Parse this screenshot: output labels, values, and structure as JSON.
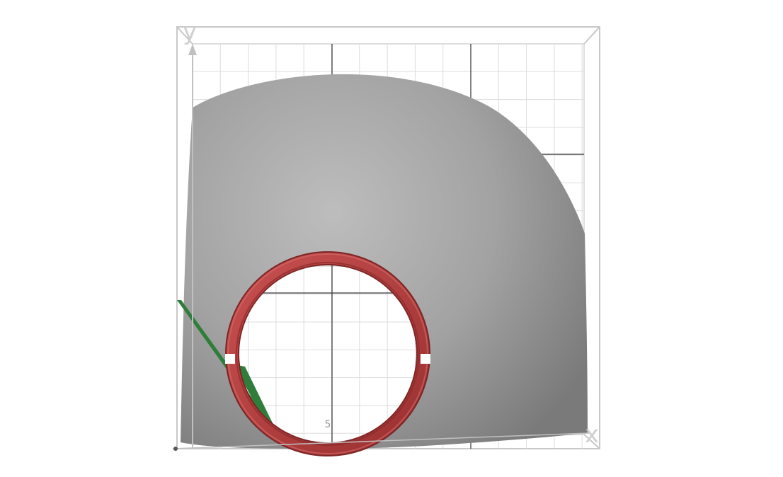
{
  "axes": {
    "x_label": "x",
    "y_label": "y",
    "tick_label": "5"
  },
  "colors": {
    "background": "#ffffff",
    "grid_minor": "#dddddd",
    "grid_major": "#333333",
    "box": "#c8c8c8",
    "surface_light": "#bdbdbd",
    "surface_dark": "#7a7a7a",
    "ring": "#b84444",
    "ring_dark": "#7e2424",
    "green_plane": "#2e7d3a",
    "axis_arrow": "#c0c0c0"
  }
}
